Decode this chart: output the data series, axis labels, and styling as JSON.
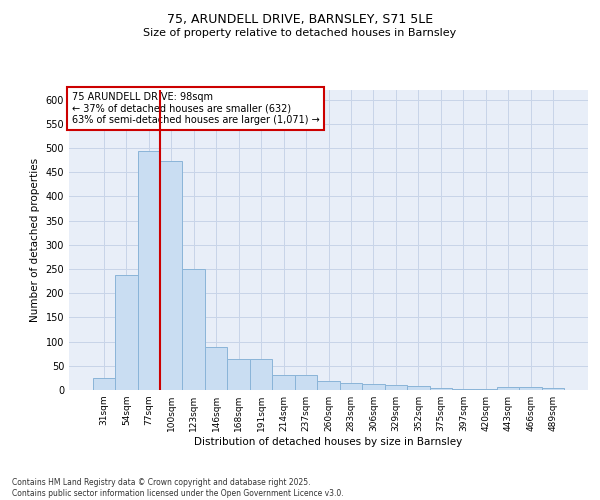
{
  "title1": "75, ARUNDELL DRIVE, BARNSLEY, S71 5LE",
  "title2": "Size of property relative to detached houses in Barnsley",
  "xlabel": "Distribution of detached houses by size in Barnsley",
  "ylabel": "Number of detached properties",
  "categories": [
    "31sqm",
    "54sqm",
    "77sqm",
    "100sqm",
    "123sqm",
    "146sqm",
    "168sqm",
    "191sqm",
    "214sqm",
    "237sqm",
    "260sqm",
    "283sqm",
    "306sqm",
    "329sqm",
    "352sqm",
    "375sqm",
    "397sqm",
    "420sqm",
    "443sqm",
    "466sqm",
    "489sqm"
  ],
  "values": [
    25,
    238,
    494,
    473,
    250,
    88,
    65,
    65,
    30,
    30,
    18,
    15,
    12,
    10,
    8,
    5,
    3,
    3,
    6,
    6,
    5
  ],
  "bar_color": "#c9ddf2",
  "bar_edge_color": "#8ab4d8",
  "grid_color": "#c8d4e8",
  "background_color": "#ffffff",
  "axes_bg_color": "#e8eef8",
  "vline_x_index": 2,
  "vline_color": "#cc0000",
  "annotation_text": "75 ARUNDELL DRIVE: 98sqm\n← 37% of detached houses are smaller (632)\n63% of semi-detached houses are larger (1,071) →",
  "annotation_box_color": "#cc0000",
  "footnote": "Contains HM Land Registry data © Crown copyright and database right 2025.\nContains public sector information licensed under the Open Government Licence v3.0.",
  "ylim": [
    0,
    620
  ],
  "yticks": [
    0,
    50,
    100,
    150,
    200,
    250,
    300,
    350,
    400,
    450,
    500,
    550,
    600
  ]
}
